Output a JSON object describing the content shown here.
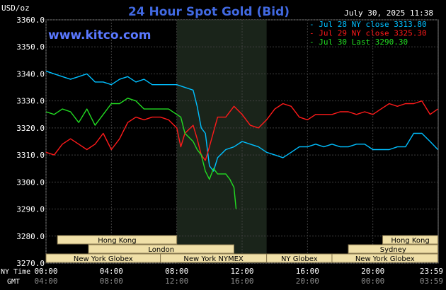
{
  "header": {
    "title": "24 Hour Spot Gold (Bid)",
    "unit": "USD/oz",
    "datetime": "July 30, 2025 11:38",
    "watermark": "www.kitco.com"
  },
  "colors": {
    "background": "#000000",
    "grid": "#3f3f3f",
    "title": "#4169e1",
    "watermark": "#5a78ff",
    "session_fill": "#f0e0a8",
    "session_text": "#000000",
    "night_shade": "#1f2a1f"
  },
  "chart_data": {
    "type": "line",
    "title": "24 Hour Spot Gold (Bid)",
    "ylabel": "USD/oz",
    "ylim": [
      3270,
      3360
    ],
    "yticks": [
      "3360.0",
      "3350.0",
      "3340.0",
      "3330.0",
      "3320.0",
      "3310.0",
      "3300.0",
      "3290.0",
      "3280.0",
      "3270.0"
    ],
    "xlim": [
      0,
      24
    ],
    "ny_time_label": "NY Time",
    "gmt_label": "GMT",
    "x_ticks": [
      {
        "h": 0,
        "ny": "00:00",
        "gmt": "04:00"
      },
      {
        "h": 4,
        "ny": "04:00",
        "gmt": "08:00"
      },
      {
        "h": 8,
        "ny": "08:00",
        "gmt": "12:00"
      },
      {
        "h": 12,
        "ny": "12:00",
        "gmt": "16:00"
      },
      {
        "h": 16,
        "ny": "16:00",
        "gmt": "20:00"
      },
      {
        "h": 20,
        "ny": "20:00",
        "gmt": "00:00"
      },
      {
        "h": 23.98,
        "ny": "23:59",
        "gmt": "03:59"
      }
    ],
    "highlight_range": [
      8,
      13.5
    ],
    "series": [
      {
        "name": "Jul 28 NY close 3313.80",
        "color": "#00bfff",
        "x": [
          0,
          0.5,
          1,
          1.5,
          2,
          2.5,
          3,
          3.5,
          4,
          4.5,
          5,
          5.5,
          6,
          6.5,
          7,
          7.5,
          8,
          8.5,
          9,
          9.25,
          9.5,
          9.75,
          10,
          10.25,
          10.5,
          11,
          11.5,
          12,
          12.5,
          13,
          13.5,
          14,
          14.5,
          15,
          15.5,
          16,
          16.5,
          17,
          17.5,
          18,
          18.5,
          19,
          19.5,
          20,
          20.5,
          21,
          21.5,
          22,
          22.5,
          23,
          23.5,
          23.98
        ],
        "values": [
          3341,
          3340,
          3339,
          3338,
          3339,
          3340,
          3337,
          3337,
          3336,
          3338,
          3339,
          3337,
          3338,
          3336,
          3336,
          3336,
          3336,
          3335,
          3334,
          3328,
          3320,
          3318,
          3306,
          3304,
          3309,
          3312,
          3313,
          3315,
          3314,
          3313,
          3311,
          3310,
          3309,
          3311,
          3313,
          3313,
          3314,
          3313,
          3314,
          3313,
          3313,
          3314,
          3314,
          3312,
          3312,
          3312,
          3313,
          3313,
          3318,
          3318,
          3315,
          3312
        ]
      },
      {
        "name": "Jul 29 NY close 3325.30",
        "color": "#ff1a1a",
        "x": [
          0,
          0.5,
          1,
          1.5,
          2,
          2.5,
          3,
          3.5,
          4,
          4.5,
          5,
          5.5,
          6,
          6.5,
          7,
          7.5,
          8,
          8.25,
          8.5,
          9,
          9.25,
          9.5,
          9.75,
          10,
          10.5,
          11,
          11.5,
          12,
          12.5,
          13,
          13.5,
          14,
          14.5,
          15,
          15.5,
          16,
          16.5,
          17,
          17.5,
          18,
          18.5,
          19,
          19.5,
          20,
          20.5,
          21,
          21.5,
          22,
          22.5,
          23,
          23.5,
          23.98
        ],
        "values": [
          3311,
          3310,
          3314,
          3316,
          3314,
          3312,
          3314,
          3318,
          3312,
          3316,
          3322,
          3324,
          3323,
          3324,
          3324,
          3323,
          3320,
          3313,
          3318,
          3321,
          3316,
          3310,
          3308,
          3313,
          3324,
          3324,
          3328,
          3325,
          3321,
          3320,
          3323,
          3327,
          3329,
          3328,
          3324,
          3323,
          3325,
          3325,
          3325,
          3326,
          3326,
          3325,
          3326,
          3325,
          3327,
          3329,
          3328,
          3329,
          3329,
          3330,
          3325,
          3327
        ]
      },
      {
        "name": "Jul 30 Last 3290.30",
        "color": "#22dd22",
        "x": [
          0,
          0.5,
          1,
          1.5,
          2,
          2.5,
          3,
          3.5,
          4,
          4.5,
          5,
          5.5,
          6,
          6.5,
          7,
          7.5,
          8,
          8.25,
          8.5,
          9,
          9.25,
          9.5,
          9.75,
          10,
          10.25,
          10.5,
          11,
          11.25,
          11.5,
          11.63
        ],
        "values": [
          3326,
          3325,
          3327,
          3326,
          3322,
          3327,
          3321,
          3325,
          3329,
          3329,
          3331,
          3330,
          3327,
          3327,
          3327,
          3327,
          3325,
          3324,
          3318,
          3315,
          3312,
          3310,
          3304,
          3301,
          3305,
          3303,
          3303,
          3301,
          3298,
          3290
        ]
      }
    ]
  },
  "legend": [
    {
      "label": "Jul 28 NY close 3313.80",
      "color": "#00bfff"
    },
    {
      "label": "Jul 29 NY close 3325.30",
      "color": "#ff1a1a"
    },
    {
      "label": "Jul 30 Last 3290.30",
      "color": "#22dd22"
    }
  ],
  "sessions": {
    "rows": [
      [
        {
          "name": "Hong Kong",
          "start": 0.7,
          "end": 8.0
        },
        {
          "name": "Hong Kong",
          "start": 20.6,
          "end": 23.98
        }
      ],
      [
        {
          "name": "London",
          "start": 2.6,
          "end": 11.5
        },
        {
          "name": "Sydney",
          "start": 18.5,
          "end": 23.98
        }
      ],
      [
        {
          "name": "New York Globex",
          "start": 0,
          "end": 7.0
        },
        {
          "name": "New York NYMEX",
          "start": 7.0,
          "end": 13.5
        },
        {
          "name": "NY Globex",
          "start": 13.5,
          "end": 17.5
        },
        {
          "name": "New York Globex",
          "start": 17.5,
          "end": 23.98
        }
      ]
    ]
  }
}
